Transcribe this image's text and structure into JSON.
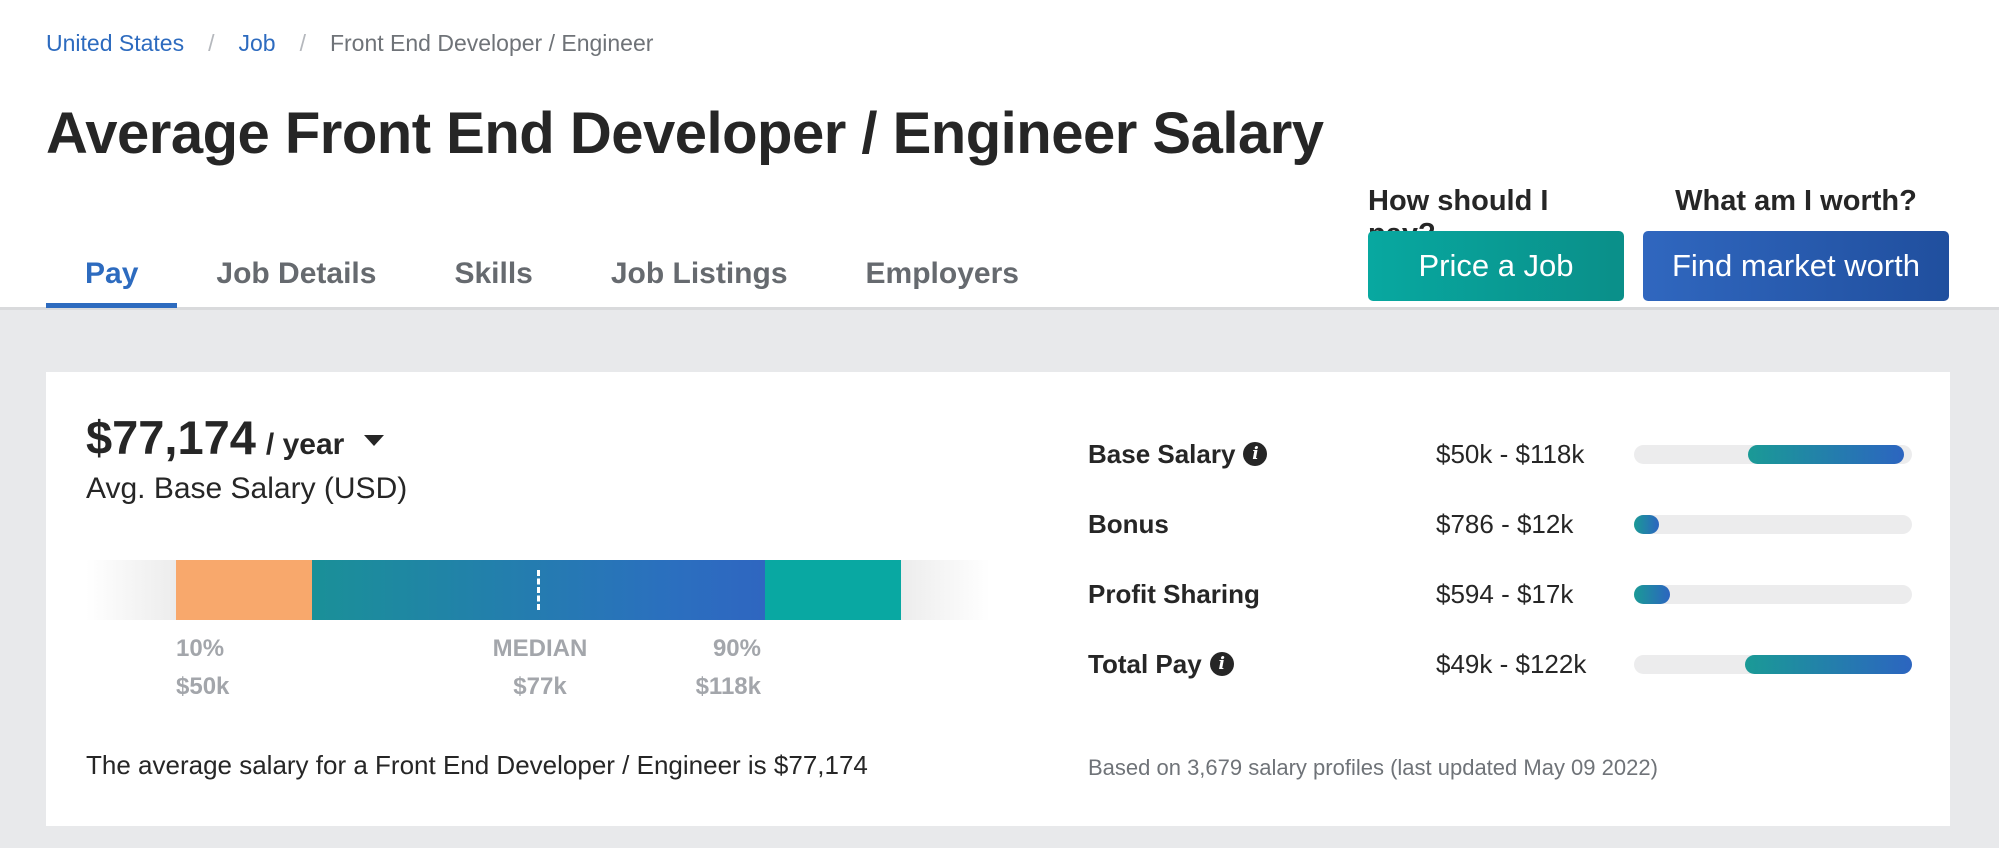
{
  "breadcrumb": {
    "items": [
      {
        "label": "United States"
      },
      {
        "label": "Job"
      }
    ],
    "current": "Front End Developer / Engineer",
    "separator": "/"
  },
  "page_title": "Average Front End Developer / Engineer Salary",
  "tabs": [
    {
      "label": "Pay",
      "active": true
    },
    {
      "label": "Job Details",
      "active": false
    },
    {
      "label": "Skills",
      "active": false
    },
    {
      "label": "Job Listings",
      "active": false
    },
    {
      "label": "Employers",
      "active": false
    }
  ],
  "cta": {
    "pay_question": "How should I pay?",
    "pay_button": "Price a Job",
    "worth_question": "What am I worth?",
    "worth_button": "Find market worth"
  },
  "salary": {
    "amount": "$77,174",
    "period": "/ year",
    "label": "Avg. Base Salary (USD)",
    "range": {
      "p10_label": "10%",
      "p10_value": "$50k",
      "median_label": "MEDIAN",
      "median_value": "$77k",
      "p90_label": "90%",
      "p90_value": "$118k"
    },
    "summary": "The average salary for a Front End Developer / Engineer is $77,174"
  },
  "breakdown": [
    {
      "name": "Base Salary",
      "info": true,
      "range": "$50k - $118k",
      "bar_start": 0.41,
      "bar_end": 0.97
    },
    {
      "name": "Bonus",
      "info": false,
      "range": "$786 - $12k",
      "bar_start": 0.0,
      "bar_end": 0.09
    },
    {
      "name": "Profit Sharing",
      "info": false,
      "range": "$594 - $17k",
      "bar_start": 0.0,
      "bar_end": 0.13
    },
    {
      "name": "Total Pay",
      "info": true,
      "range": "$49k - $122k",
      "bar_start": 0.4,
      "bar_end": 1.0
    }
  ],
  "footnote": "Based on 3,679 salary profiles (last updated May 09 2022)",
  "colors": {
    "link": "#2d6bbf",
    "teal": "#09a8a2",
    "blue": "#2f66c0",
    "orange": "#f8a86c"
  },
  "icons": {
    "info": "info-icon",
    "dropdown": "caret-down-icon"
  }
}
